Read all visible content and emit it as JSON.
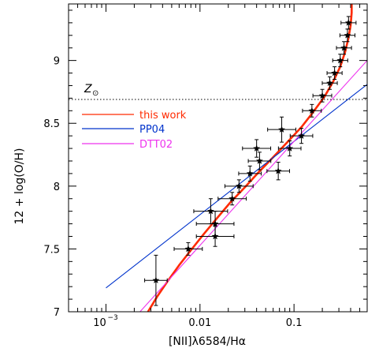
{
  "chart_data": {
    "type": "scatter",
    "xlabel": "[NII]λ6584/Hα",
    "ylabel": "12 + log(O/H)",
    "xscale": "log",
    "xlim": [
      0.0004,
      0.6
    ],
    "ylim": [
      7,
      9.45
    ],
    "x_ticks": [
      {
        "value": 0.001,
        "label": "10",
        "exp": "−3"
      },
      {
        "value": 0.01,
        "label": "0.01",
        "exp": ""
      },
      {
        "value": 0.1,
        "label": "0.1",
        "exp": ""
      }
    ],
    "y_ticks": [
      {
        "value": 7,
        "label": "7"
      },
      {
        "value": 7.5,
        "label": "7.5"
      },
      {
        "value": 8,
        "label": "8"
      },
      {
        "value": 8.5,
        "label": "8.5"
      },
      {
        "value": 9,
        "label": "9"
      }
    ],
    "solar_line": {
      "value": 8.69,
      "label": "Z",
      "symbol": "⊙"
    },
    "legend": {
      "placement": "upper-left",
      "entries": [
        {
          "label": "this work",
          "color": "#ff2a00"
        },
        {
          "label": "PP04",
          "color": "#0033cc"
        },
        {
          "label": "DTT02",
          "color": "#ee33ee"
        }
      ]
    },
    "points": [
      {
        "x": 0.0034,
        "y": 7.25,
        "xerr": 0.12,
        "yerr": 0.2
      },
      {
        "x": 0.0075,
        "y": 7.5,
        "xerr": 0.15,
        "yerr": 0.05
      },
      {
        "x": 0.013,
        "y": 7.8,
        "xerr": 0.18,
        "yerr": 0.1
      },
      {
        "x": 0.0145,
        "y": 7.7,
        "xerr": 0.2,
        "yerr": 0.1
      },
      {
        "x": 0.0145,
        "y": 7.6,
        "xerr": 0.2,
        "yerr": 0.08
      },
      {
        "x": 0.022,
        "y": 7.9,
        "xerr": 0.15,
        "yerr": 0.05
      },
      {
        "x": 0.026,
        "y": 8.0,
        "xerr": 0.15,
        "yerr": 0.05
      },
      {
        "x": 0.034,
        "y": 8.1,
        "xerr": 0.12,
        "yerr": 0.06
      },
      {
        "x": 0.04,
        "y": 8.3,
        "xerr": 0.15,
        "yerr": 0.07
      },
      {
        "x": 0.043,
        "y": 8.2,
        "xerr": 0.12,
        "yerr": 0.07
      },
      {
        "x": 0.068,
        "y": 8.12,
        "xerr": 0.12,
        "yerr": 0.07
      },
      {
        "x": 0.074,
        "y": 8.45,
        "xerr": 0.15,
        "yerr": 0.1
      },
      {
        "x": 0.09,
        "y": 8.3,
        "xerr": 0.12,
        "yerr": 0.06
      },
      {
        "x": 0.12,
        "y": 8.4,
        "xerr": 0.12,
        "yerr": 0.06
      },
      {
        "x": 0.155,
        "y": 8.6,
        "xerr": 0.1,
        "yerr": 0.05
      },
      {
        "x": 0.2,
        "y": 8.72,
        "xerr": 0.1,
        "yerr": 0.05
      },
      {
        "x": 0.24,
        "y": 8.82,
        "xerr": 0.08,
        "yerr": 0.05
      },
      {
        "x": 0.27,
        "y": 8.9,
        "xerr": 0.08,
        "yerr": 0.05
      },
      {
        "x": 0.31,
        "y": 9.0,
        "xerr": 0.08,
        "yerr": 0.05
      },
      {
        "x": 0.34,
        "y": 9.1,
        "xerr": 0.08,
        "yerr": 0.05
      },
      {
        "x": 0.37,
        "y": 9.2,
        "xerr": 0.08,
        "yerr": 0.05
      },
      {
        "x": 0.38,
        "y": 9.3,
        "xerr": 0.08,
        "yerr": 0.05
      }
    ],
    "series": [
      {
        "name": "this work",
        "color": "#ff2a00",
        "x": [
          0.0028,
          0.0035,
          0.0045,
          0.006,
          0.008,
          0.011,
          0.015,
          0.021,
          0.03,
          0.042,
          0.06,
          0.085,
          0.12,
          0.16,
          0.21,
          0.26,
          0.31,
          0.35,
          0.38,
          0.4,
          0.41,
          0.41
        ],
        "y": [
          7.0,
          7.12,
          7.24,
          7.37,
          7.49,
          7.62,
          7.74,
          7.87,
          7.99,
          8.11,
          8.23,
          8.35,
          8.47,
          8.59,
          8.71,
          8.83,
          8.95,
          9.07,
          9.18,
          9.28,
          9.38,
          9.45
        ]
      },
      {
        "name": "PP04",
        "color": "#0033cc",
        "x": [
          0.001,
          0.6
        ],
        "y": [
          7.19,
          8.81
        ]
      },
      {
        "name": "DTT02",
        "color": "#ee33ee",
        "x": [
          0.0023,
          0.6
        ],
        "y": [
          7.0,
          9.0
        ]
      }
    ]
  }
}
